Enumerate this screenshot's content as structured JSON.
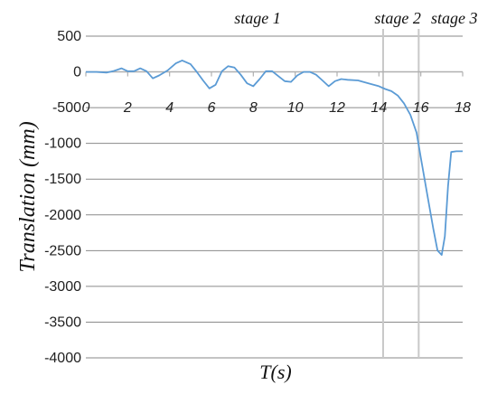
{
  "chart_data": {
    "type": "line",
    "title": "",
    "xlabel": "T(s)",
    "ylabel": "Translation (mm)",
    "xlim": [
      0,
      18
    ],
    "ylim": [
      -4000,
      500
    ],
    "x_ticks": [
      0,
      2,
      4,
      6,
      8,
      10,
      12,
      14,
      16,
      18
    ],
    "x_tick_labels": [
      "0",
      "2",
      "4",
      "6",
      "8",
      "10",
      "12",
      "14",
      "16",
      "18"
    ],
    "y_ticks": [
      500,
      0,
      -500,
      -1000,
      -1500,
      -2000,
      -2500,
      -3000,
      -3500,
      -4000
    ],
    "y_tick_labels": [
      "500",
      "0",
      "-500",
      "-1000",
      "-1500",
      "-2000",
      "-2500",
      "-3000",
      "-3500",
      "-4000"
    ],
    "grid": true,
    "line_color": "#5b9bd5",
    "stage_line_color": "#c8c8c8",
    "stage_boundaries": [
      14.2,
      15.9
    ],
    "stage_labels": [
      {
        "text": "stage 1",
        "x": 8.2
      },
      {
        "text": "stage 2",
        "x": 14.9
      },
      {
        "text": "stage 3",
        "x": 17.6
      }
    ],
    "series": [
      {
        "values": [
          [
            0,
            0
          ],
          [
            0.5,
            0
          ],
          [
            1.0,
            -10
          ],
          [
            1.3,
            10
          ],
          [
            1.7,
            50
          ],
          [
            2.0,
            10
          ],
          [
            2.3,
            10
          ],
          [
            2.6,
            50
          ],
          [
            2.9,
            10
          ],
          [
            3.2,
            -90
          ],
          [
            3.5,
            -50
          ],
          [
            3.9,
            20
          ],
          [
            4.3,
            120
          ],
          [
            4.6,
            160
          ],
          [
            5.0,
            110
          ],
          [
            5.3,
            0
          ],
          [
            5.6,
            -120
          ],
          [
            5.9,
            -230
          ],
          [
            6.2,
            -180
          ],
          [
            6.5,
            10
          ],
          [
            6.8,
            80
          ],
          [
            7.1,
            60
          ],
          [
            7.4,
            -40
          ],
          [
            7.7,
            -160
          ],
          [
            8.0,
            -200
          ],
          [
            8.3,
            -100
          ],
          [
            8.6,
            10
          ],
          [
            8.9,
            10
          ],
          [
            9.2,
            -60
          ],
          [
            9.5,
            -130
          ],
          [
            9.8,
            -140
          ],
          [
            10.1,
            -50
          ],
          [
            10.4,
            0
          ],
          [
            10.7,
            0
          ],
          [
            11.0,
            -40
          ],
          [
            11.3,
            -120
          ],
          [
            11.6,
            -200
          ],
          [
            11.9,
            -130
          ],
          [
            12.2,
            -100
          ],
          [
            12.5,
            -110
          ],
          [
            13.0,
            -120
          ],
          [
            13.5,
            -160
          ],
          [
            14.0,
            -200
          ],
          [
            14.3,
            -240
          ],
          [
            14.6,
            -270
          ],
          [
            14.9,
            -330
          ],
          [
            15.2,
            -440
          ],
          [
            15.5,
            -600
          ],
          [
            15.8,
            -850
          ],
          [
            16.0,
            -1200
          ],
          [
            16.3,
            -1700
          ],
          [
            16.6,
            -2200
          ],
          [
            16.8,
            -2500
          ],
          [
            17.0,
            -2560
          ],
          [
            17.15,
            -2300
          ],
          [
            17.3,
            -1600
          ],
          [
            17.45,
            -1120
          ],
          [
            17.7,
            -1110
          ],
          [
            18.0,
            -1110
          ]
        ]
      }
    ]
  }
}
